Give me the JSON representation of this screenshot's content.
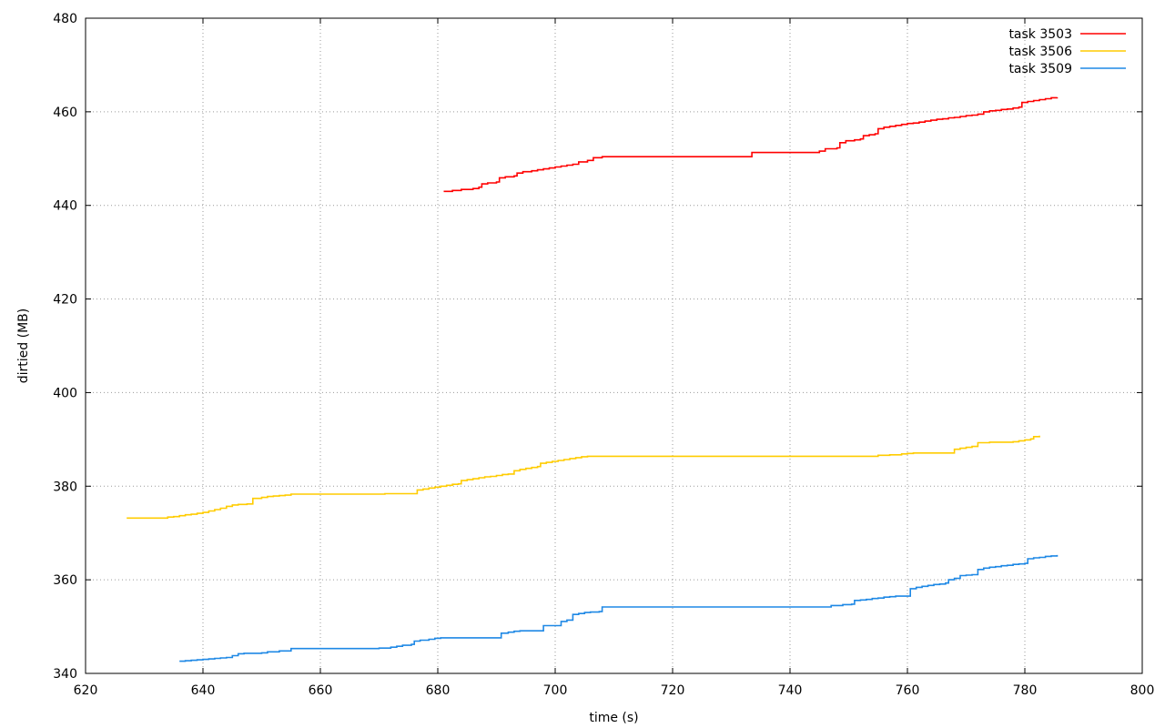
{
  "chart_data": {
    "type": "line",
    "xlabel": "time (s)",
    "ylabel": "dirtied (MB)",
    "xlim": [
      620,
      800
    ],
    "ylim": [
      340,
      480
    ],
    "xticks": [
      620,
      640,
      660,
      680,
      700,
      720,
      740,
      760,
      780,
      800
    ],
    "yticks": [
      340,
      360,
      380,
      400,
      420,
      440,
      460,
      480
    ],
    "grid": true,
    "legend_position": "top-right",
    "step_style": true,
    "series": [
      {
        "name": "task 3503",
        "color": "#ff0000",
        "points": [
          [
            681.0,
            443.0
          ],
          [
            682.5,
            443.2
          ],
          [
            684.0,
            443.4
          ],
          [
            686.0,
            443.6
          ],
          [
            687.0,
            443.9
          ],
          [
            687.5,
            444.6
          ],
          [
            688.5,
            444.8
          ],
          [
            690.0,
            445.0
          ],
          [
            690.5,
            445.9
          ],
          [
            691.5,
            446.1
          ],
          [
            693.0,
            446.3
          ],
          [
            693.5,
            446.9
          ],
          [
            694.5,
            447.2
          ],
          [
            696.0,
            447.4
          ],
          [
            697.0,
            447.6
          ],
          [
            698.0,
            447.8
          ],
          [
            699.0,
            448.0
          ],
          [
            700.0,
            448.2
          ],
          [
            701.0,
            448.4
          ],
          [
            702.0,
            448.6
          ],
          [
            703.0,
            448.8
          ],
          [
            704.0,
            449.3
          ],
          [
            705.5,
            449.6
          ],
          [
            706.5,
            450.2
          ],
          [
            708.0,
            450.4
          ],
          [
            720.0,
            450.4
          ],
          [
            733.0,
            450.4
          ],
          [
            733.5,
            451.3
          ],
          [
            740.0,
            451.3
          ],
          [
            744.0,
            451.3
          ],
          [
            745.0,
            451.6
          ],
          [
            746.0,
            452.1
          ],
          [
            748.0,
            452.3
          ],
          [
            748.5,
            453.4
          ],
          [
            749.5,
            453.8
          ],
          [
            751.0,
            454.0
          ],
          [
            752.0,
            454.2
          ],
          [
            752.5,
            454.9
          ],
          [
            753.5,
            455.1
          ],
          [
            754.5,
            455.3
          ],
          [
            755.0,
            456.4
          ],
          [
            756.0,
            456.7
          ],
          [
            757.0,
            456.9
          ],
          [
            758.0,
            457.1
          ],
          [
            759.0,
            457.3
          ],
          [
            760.0,
            457.5
          ],
          [
            761.0,
            457.6
          ],
          [
            762.0,
            457.8
          ],
          [
            763.0,
            458.0
          ],
          [
            764.0,
            458.2
          ],
          [
            765.0,
            458.4
          ],
          [
            766.0,
            458.5
          ],
          [
            767.0,
            458.7
          ],
          [
            768.0,
            458.8
          ],
          [
            769.0,
            459.0
          ],
          [
            770.0,
            459.2
          ],
          [
            771.0,
            459.3
          ],
          [
            772.0,
            459.5
          ],
          [
            773.0,
            460.0
          ],
          [
            774.0,
            460.2
          ],
          [
            775.0,
            460.3
          ],
          [
            776.0,
            460.5
          ],
          [
            777.0,
            460.6
          ],
          [
            778.0,
            460.8
          ],
          [
            779.0,
            461.0
          ],
          [
            779.5,
            462.0
          ],
          [
            780.5,
            462.2
          ],
          [
            781.5,
            462.4
          ],
          [
            782.5,
            462.6
          ],
          [
            783.5,
            462.8
          ],
          [
            784.5,
            463.0
          ],
          [
            785.5,
            463.1
          ]
        ]
      },
      {
        "name": "task 3506",
        "color": "#ffcc00",
        "points": [
          [
            627.0,
            373.2
          ],
          [
            630.0,
            373.2
          ],
          [
            633.0,
            373.2
          ],
          [
            634.0,
            373.4
          ],
          [
            635.0,
            373.5
          ],
          [
            636.0,
            373.7
          ],
          [
            637.0,
            373.9
          ],
          [
            638.0,
            374.0
          ],
          [
            639.0,
            374.2
          ],
          [
            640.0,
            374.4
          ],
          [
            641.0,
            374.7
          ],
          [
            642.0,
            375.0
          ],
          [
            643.0,
            375.3
          ],
          [
            644.0,
            375.7
          ],
          [
            645.0,
            376.0
          ],
          [
            646.0,
            376.1
          ],
          [
            647.5,
            376.2
          ],
          [
            648.5,
            377.4
          ],
          [
            650.0,
            377.6
          ],
          [
            651.0,
            377.8
          ],
          [
            652.0,
            377.9
          ],
          [
            653.0,
            378.0
          ],
          [
            654.0,
            378.1
          ],
          [
            655.0,
            378.3
          ],
          [
            660.0,
            378.3
          ],
          [
            665.0,
            378.3
          ],
          [
            670.0,
            378.3
          ],
          [
            671.0,
            378.4
          ],
          [
            675.0,
            378.4
          ],
          [
            676.0,
            378.4
          ],
          [
            676.5,
            379.2
          ],
          [
            677.5,
            379.4
          ],
          [
            678.5,
            379.6
          ],
          [
            679.5,
            379.8
          ],
          [
            680.5,
            380.0
          ],
          [
            681.5,
            380.2
          ],
          [
            682.5,
            380.4
          ],
          [
            683.5,
            380.5
          ],
          [
            684.0,
            381.2
          ],
          [
            685.0,
            381.4
          ],
          [
            686.0,
            381.6
          ],
          [
            687.0,
            381.8
          ],
          [
            688.0,
            382.0
          ],
          [
            689.0,
            382.1
          ],
          [
            690.0,
            382.3
          ],
          [
            691.0,
            382.5
          ],
          [
            692.0,
            382.6
          ],
          [
            693.0,
            383.3
          ],
          [
            694.0,
            383.6
          ],
          [
            695.0,
            383.8
          ],
          [
            696.0,
            384.0
          ],
          [
            697.0,
            384.2
          ],
          [
            697.5,
            384.9
          ],
          [
            698.5,
            385.1
          ],
          [
            699.5,
            385.3
          ],
          [
            700.5,
            385.5
          ],
          [
            701.5,
            385.7
          ],
          [
            702.5,
            385.9
          ],
          [
            703.5,
            386.1
          ],
          [
            704.5,
            386.3
          ],
          [
            705.5,
            386.4
          ],
          [
            720.0,
            386.4
          ],
          [
            740.0,
            386.4
          ],
          [
            754.0,
            386.4
          ],
          [
            755.0,
            386.6
          ],
          [
            757.0,
            386.7
          ],
          [
            759.0,
            386.9
          ],
          [
            760.0,
            387.0
          ],
          [
            761.0,
            387.1
          ],
          [
            767.0,
            387.1
          ],
          [
            768.0,
            387.9
          ],
          [
            769.0,
            388.1
          ],
          [
            770.0,
            388.3
          ],
          [
            771.0,
            388.5
          ],
          [
            772.0,
            389.3
          ],
          [
            774.0,
            389.4
          ],
          [
            776.0,
            389.4
          ],
          [
            778.0,
            389.5
          ],
          [
            779.0,
            389.7
          ],
          [
            780.0,
            389.9
          ],
          [
            781.0,
            390.1
          ],
          [
            781.5,
            390.6
          ],
          [
            782.5,
            390.8
          ]
        ]
      },
      {
        "name": "task 3509",
        "color": "#1e88e5",
        "points": [
          [
            636.0,
            342.6
          ],
          [
            637.0,
            342.7
          ],
          [
            638.0,
            342.8
          ],
          [
            639.0,
            342.9
          ],
          [
            640.0,
            343.0
          ],
          [
            641.0,
            343.1
          ],
          [
            642.0,
            343.2
          ],
          [
            643.0,
            343.3
          ],
          [
            644.0,
            343.4
          ],
          [
            645.0,
            343.8
          ],
          [
            646.0,
            344.2
          ],
          [
            647.0,
            344.3
          ],
          [
            650.0,
            344.4
          ],
          [
            651.0,
            344.6
          ],
          [
            653.0,
            344.8
          ],
          [
            655.0,
            345.3
          ],
          [
            660.0,
            345.3
          ],
          [
            665.0,
            345.3
          ],
          [
            670.0,
            345.4
          ],
          [
            672.0,
            345.6
          ],
          [
            673.0,
            345.8
          ],
          [
            674.0,
            346.0
          ],
          [
            675.5,
            346.2
          ],
          [
            676.0,
            346.9
          ],
          [
            677.0,
            347.1
          ],
          [
            678.5,
            347.3
          ],
          [
            679.5,
            347.5
          ],
          [
            680.5,
            347.6
          ],
          [
            690.5,
            347.6
          ],
          [
            690.8,
            348.6
          ],
          [
            692.0,
            348.8
          ],
          [
            693.0,
            349.0
          ],
          [
            694.0,
            349.1
          ],
          [
            697.5,
            349.1
          ],
          [
            698.0,
            350.2
          ],
          [
            700.5,
            350.2
          ],
          [
            701.0,
            351.1
          ],
          [
            702.0,
            351.4
          ],
          [
            703.0,
            352.6
          ],
          [
            704.0,
            352.8
          ],
          [
            705.0,
            353.0
          ],
          [
            706.0,
            353.1
          ],
          [
            707.5,
            353.2
          ],
          [
            708.0,
            354.2
          ],
          [
            720.0,
            354.2
          ],
          [
            740.0,
            354.2
          ],
          [
            746.0,
            354.2
          ],
          [
            747.0,
            354.5
          ],
          [
            749.0,
            354.7
          ],
          [
            750.5,
            354.8
          ],
          [
            751.0,
            355.6
          ],
          [
            752.0,
            355.7
          ],
          [
            753.0,
            355.8
          ],
          [
            754.0,
            356.0
          ],
          [
            755.0,
            356.1
          ],
          [
            756.0,
            356.3
          ],
          [
            757.0,
            356.4
          ],
          [
            758.0,
            356.5
          ],
          [
            760.0,
            356.5
          ],
          [
            760.5,
            358.1
          ],
          [
            761.5,
            358.4
          ],
          [
            762.5,
            358.6
          ],
          [
            763.5,
            358.8
          ],
          [
            764.5,
            359.0
          ],
          [
            765.5,
            359.1
          ],
          [
            766.5,
            359.3
          ],
          [
            767.0,
            360.0
          ],
          [
            768.0,
            360.3
          ],
          [
            769.0,
            360.9
          ],
          [
            770.0,
            361.0
          ],
          [
            771.0,
            361.1
          ],
          [
            772.0,
            362.2
          ],
          [
            773.0,
            362.5
          ],
          [
            774.0,
            362.7
          ],
          [
            775.0,
            362.8
          ],
          [
            776.0,
            363.0
          ],
          [
            777.0,
            363.1
          ],
          [
            778.0,
            363.3
          ],
          [
            779.0,
            363.4
          ],
          [
            780.0,
            363.5
          ],
          [
            780.5,
            364.5
          ],
          [
            781.5,
            364.7
          ],
          [
            782.5,
            364.8
          ],
          [
            783.5,
            365.0
          ],
          [
            784.5,
            365.1
          ],
          [
            785.5,
            365.3
          ]
        ]
      }
    ]
  }
}
